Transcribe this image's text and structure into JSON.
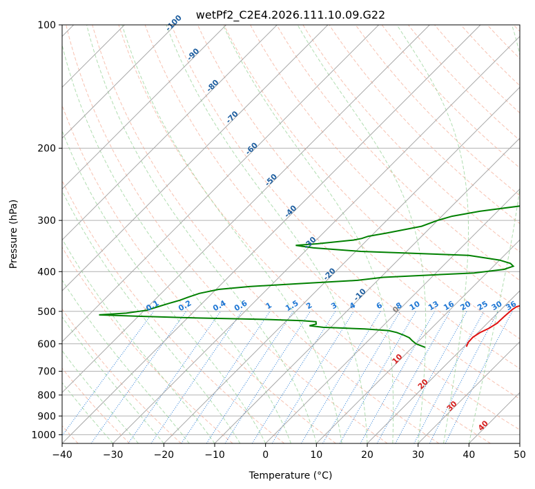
{
  "chart_data": {
    "type": "line",
    "title": "wetPf2_C2E4.2026.111.10.09.G22",
    "xlabel": "Temperature (°C)",
    "ylabel": "Pressure (hPa)",
    "xlim": [
      -40,
      50
    ],
    "ylim": [
      1050,
      100
    ],
    "x_ticks": [
      -40,
      -30,
      -20,
      -10,
      0,
      10,
      20,
      30,
      40,
      50
    ],
    "y_ticks": [
      100,
      200,
      300,
      400,
      500,
      600,
      700,
      800,
      900,
      1000
    ],
    "grid": true,
    "series": [
      {
        "name": "Temperature",
        "color": "#e01010",
        "points": [
          [
            1.6,
            100
          ],
          [
            1.7,
            103
          ],
          [
            2.0,
            110
          ],
          [
            2.0,
            120
          ],
          [
            1.0,
            130
          ],
          [
            0.4,
            140
          ],
          [
            1.2,
            150
          ],
          [
            2.0,
            155
          ],
          [
            2.5,
            162
          ],
          [
            2.6,
            170
          ],
          [
            4.0,
            180
          ],
          [
            6.0,
            190
          ],
          [
            7.5,
            200
          ],
          [
            9.5,
            215
          ],
          [
            11.5,
            235
          ],
          [
            12.5,
            250
          ],
          [
            13.2,
            265
          ],
          [
            13.9,
            280
          ],
          [
            15.8,
            300
          ],
          [
            17.8,
            320
          ],
          [
            19.6,
            340
          ],
          [
            21.3,
            355
          ],
          [
            21.1,
            365
          ],
          [
            19.6,
            375
          ],
          [
            18.5,
            385
          ],
          [
            18.3,
            395
          ],
          [
            19.0,
            408
          ],
          [
            20.5,
            425
          ],
          [
            22.0,
            443
          ],
          [
            23.4,
            462
          ],
          [
            24.0,
            475
          ],
          [
            23.5,
            482
          ],
          [
            22.5,
            487
          ],
          [
            22.2,
            495
          ],
          [
            22.0,
            515
          ],
          [
            21.9,
            535
          ],
          [
            21.3,
            550
          ],
          [
            20.4,
            563
          ],
          [
            19.9,
            578
          ],
          [
            20.0,
            595
          ],
          [
            20.5,
            610
          ]
        ]
      },
      {
        "name": "Dewpoint",
        "color": "#008000",
        "points": [
          [
            0.6,
            100
          ],
          [
            -0.4,
            106
          ],
          [
            -1.8,
            112
          ],
          [
            -2.8,
            120
          ],
          [
            -3.1,
            130
          ],
          [
            -2.5,
            138
          ],
          [
            -1.5,
            145
          ],
          [
            -1.2,
            150
          ],
          [
            -1.9,
            155
          ],
          [
            -2.0,
            165
          ],
          [
            -1.4,
            172
          ],
          [
            0.0,
            180
          ],
          [
            1.8,
            190
          ],
          [
            2.6,
            200
          ],
          [
            3.6,
            210
          ],
          [
            3.9,
            225
          ],
          [
            4.6,
            240
          ],
          [
            6.2,
            250
          ],
          [
            7.0,
            262
          ],
          [
            7.5,
            268
          ],
          [
            4.8,
            275
          ],
          [
            -3.5,
            285
          ],
          [
            -8.0,
            293
          ],
          [
            -10.0,
            300
          ],
          [
            -12.0,
            310
          ],
          [
            -17.5,
            322
          ],
          [
            -20.5,
            328
          ],
          [
            -21.4,
            332
          ],
          [
            -22.7,
            335
          ],
          [
            -29.0,
            342
          ],
          [
            -33.0,
            345
          ],
          [
            -29.0,
            350
          ],
          [
            -19.0,
            357
          ],
          [
            3.0,
            365
          ],
          [
            10.0,
            375
          ],
          [
            12.8,
            382
          ],
          [
            13.9,
            388
          ],
          [
            12.7,
            395
          ],
          [
            7.5,
            403
          ],
          [
            -9.5,
            413
          ],
          [
            -14.0,
            420
          ],
          [
            -25.0,
            428
          ],
          [
            -34.0,
            435
          ],
          [
            -39.5,
            442
          ],
          [
            -42.5,
            452
          ],
          [
            -44.0,
            462
          ],
          [
            -45.0,
            470
          ],
          [
            -46.5,
            478
          ],
          [
            -48.0,
            487
          ],
          [
            -49.5,
            497
          ],
          [
            -53.0,
            505
          ],
          [
            -58.0,
            510
          ],
          [
            -50.0,
            514
          ],
          [
            -38.0,
            519
          ],
          [
            -25.0,
            523
          ],
          [
            -17.0,
            527
          ],
          [
            -14.0,
            530
          ],
          [
            -13.5,
            537
          ],
          [
            -14.5,
            542
          ],
          [
            -11.5,
            547
          ],
          [
            -3.0,
            552
          ],
          [
            2.0,
            557
          ],
          [
            4.0,
            563
          ],
          [
            6.0,
            572
          ],
          [
            7.5,
            580
          ],
          [
            8.7,
            590
          ],
          [
            10.0,
            600
          ],
          [
            12.5,
            612
          ]
        ]
      }
    ],
    "isotherm_line_labels": [
      "-100",
      "-90",
      "-80",
      "-70",
      "-60",
      "-50",
      "-40",
      "-30",
      "-20",
      "-10",
      "0",
      "10",
      "20",
      "30",
      "40"
    ],
    "mixing_ratio_labels": [
      "0.1",
      "0.2",
      "0.4",
      "0.6",
      "1",
      "1.5",
      "2",
      "3",
      "4",
      "6",
      "8",
      "10",
      "13",
      "16",
      "20",
      "25",
      "30",
      "36"
    ]
  }
}
